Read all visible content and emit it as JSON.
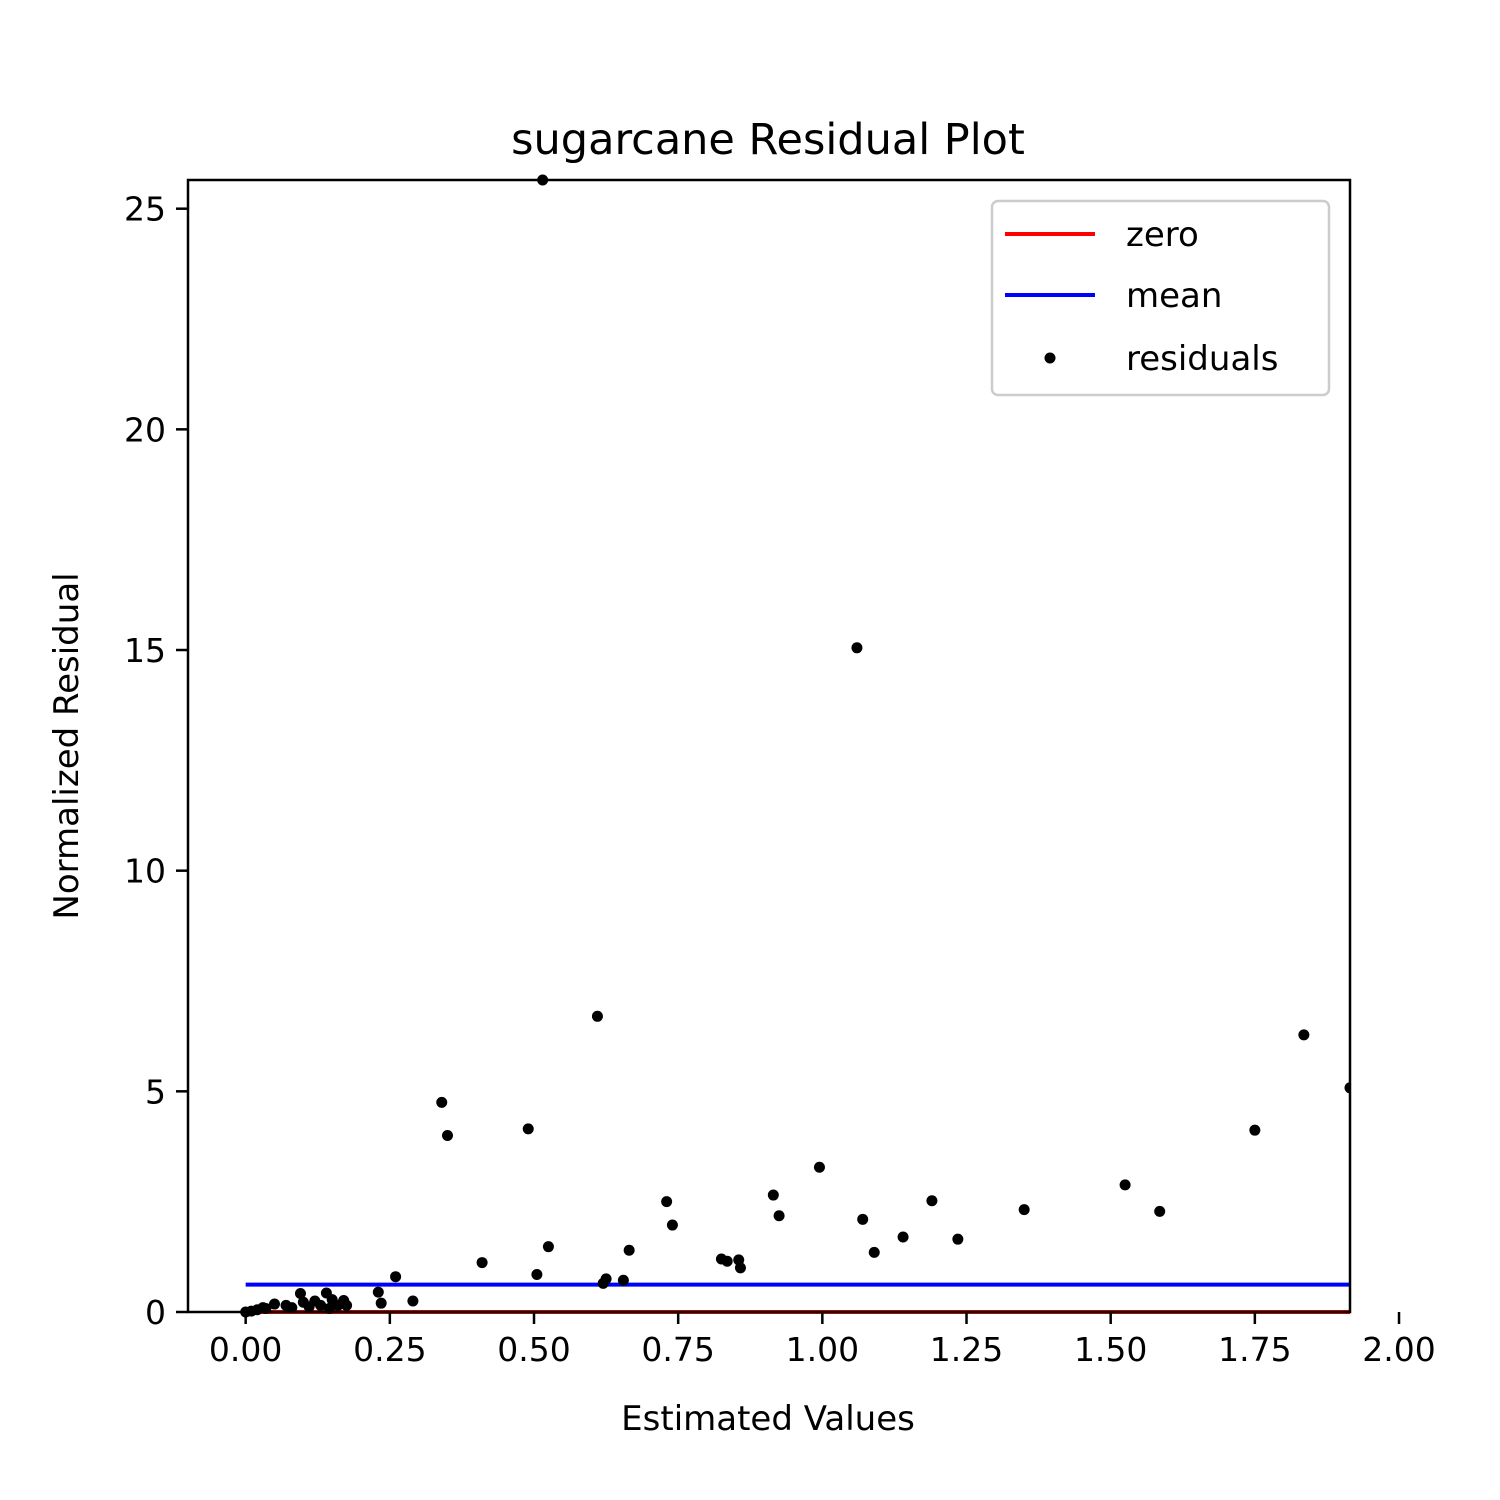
{
  "chart_data": {
    "type": "scatter",
    "title": "sugarcane Residual Plot",
    "xlabel": "Estimated Values",
    "ylabel": "Normalized Residual",
    "xlim": [
      -0.1,
      1.915
    ],
    "ylim": [
      0,
      25.65
    ],
    "xticks": [
      "0.00",
      "0.25",
      "0.50",
      "0.75",
      "1.00",
      "1.25",
      "1.50",
      "1.75",
      "2.00"
    ],
    "xtick_values": [
      0,
      0.25,
      0.5,
      0.75,
      1.0,
      1.25,
      1.5,
      1.75,
      2.0
    ],
    "yticks": [
      "0",
      "5",
      "10",
      "15",
      "20",
      "25"
    ],
    "ytick_values": [
      0,
      5,
      10,
      15,
      20,
      25
    ],
    "grid": false,
    "legend_position": "top-right",
    "series": [
      {
        "name": "zero",
        "kind": "line",
        "color": "#ff0000",
        "x": [
          0.0,
          1.915
        ],
        "y": [
          0.0,
          0.0
        ]
      },
      {
        "name": "mean",
        "kind": "line",
        "color": "#0000ff",
        "x": [
          0.0,
          1.915
        ],
        "y": [
          0.62,
          0.62
        ]
      },
      {
        "name": "residuals",
        "kind": "scatter",
        "color": "#000000",
        "x": [
          0.0,
          0.01,
          0.02,
          0.03,
          0.035,
          0.05,
          0.07,
          0.08,
          0.095,
          0.1,
          0.11,
          0.12,
          0.13,
          0.14,
          0.145,
          0.15,
          0.16,
          0.17,
          0.175,
          0.23,
          0.235,
          0.26,
          0.29,
          0.34,
          0.35,
          0.41,
          0.49,
          0.505,
          0.515,
          0.525,
          0.61,
          0.62,
          0.625,
          0.655,
          0.665,
          0.73,
          0.74,
          0.825,
          0.835,
          0.855,
          0.858,
          0.915,
          0.925,
          0.995,
          1.06,
          1.07,
          1.09,
          1.14,
          1.19,
          1.235,
          1.35,
          1.525,
          1.585,
          1.75,
          1.835,
          1.915
        ],
        "y": [
          0.0,
          0.02,
          0.05,
          0.1,
          0.08,
          0.18,
          0.15,
          0.1,
          0.42,
          0.22,
          0.12,
          0.25,
          0.15,
          0.43,
          0.08,
          0.28,
          0.15,
          0.26,
          0.15,
          0.45,
          0.2,
          0.8,
          0.25,
          4.75,
          4.0,
          1.12,
          4.15,
          0.85,
          25.65,
          1.48,
          6.7,
          0.65,
          0.75,
          0.72,
          1.4,
          2.5,
          1.97,
          1.2,
          1.15,
          1.18,
          1.0,
          2.65,
          2.18,
          3.28,
          15.05,
          2.1,
          1.35,
          1.7,
          2.52,
          1.65,
          2.32,
          2.88,
          2.28,
          4.12,
          6.28,
          5.08
        ]
      }
    ]
  }
}
